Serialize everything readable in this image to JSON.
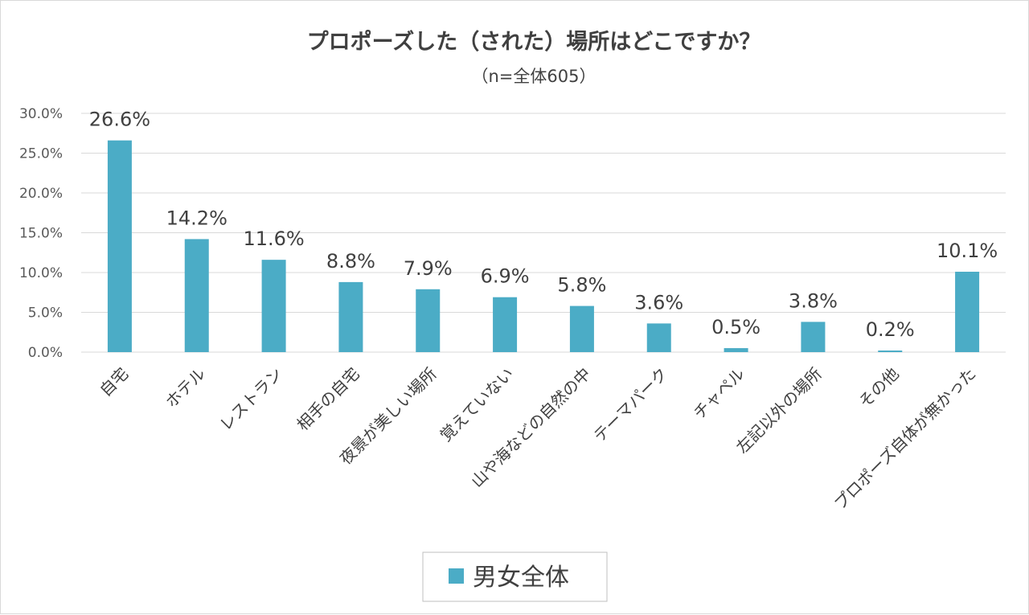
{
  "chart_data": {
    "type": "bar",
    "title": "プロポーズした（された）場所はどこですか？",
    "subtitle": "（n=全体605）",
    "categories": [
      "自宅",
      "ホテル",
      "レストラン",
      "相手の自宅",
      "夜景が美しい場所",
      "覚えていない",
      "山や海などの自然の中",
      "テーマパーク",
      "チャペル",
      "左記以外の場所",
      "その他",
      "プロポーズ自体が無かった"
    ],
    "series": [
      {
        "name": "男女全体",
        "color": "#4bacc6",
        "values": [
          26.6,
          14.2,
          11.6,
          8.8,
          7.9,
          6.9,
          5.8,
          3.6,
          0.5,
          3.8,
          0.2,
          10.1
        ],
        "labels": [
          "26.6%",
          "14.2%",
          "11.6%",
          "8.8%",
          "7.9%",
          "6.9%",
          "5.8%",
          "3.6%",
          "0.5%",
          "3.8%",
          "0.2%",
          "10.1%"
        ]
      }
    ],
    "ylim": [
      0,
      30
    ],
    "yticks": [
      0,
      5,
      10,
      15,
      20,
      25,
      30
    ],
    "ytick_labels": [
      "0.0%",
      "5.0%",
      "10.0%",
      "15.0%",
      "20.0%",
      "25.0%",
      "30.0%"
    ],
    "xlabel": "",
    "ylabel": "",
    "grid": true,
    "legend_position": "bottom"
  }
}
